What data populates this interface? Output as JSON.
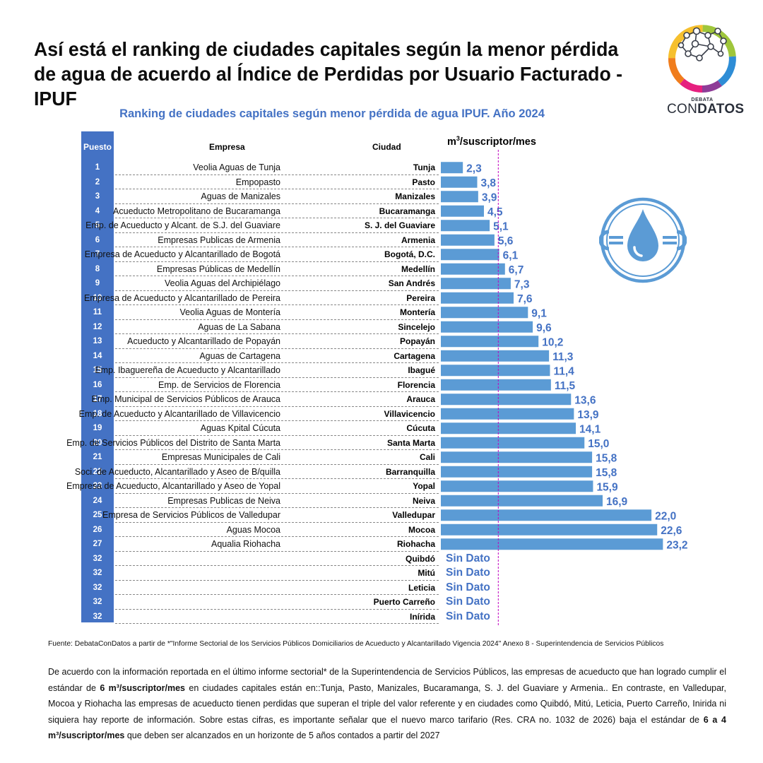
{
  "title": "Así está el ranking de ciudades capitales según la menor pérdida de agua de acuerdo al Índice de Perdidas por Usuario Facturado - IPUF",
  "logo": {
    "top": "DEBATA",
    "bottom_light": "CON",
    "bottom_bold": "DATOS"
  },
  "chart_data": {
    "type": "bar",
    "orientation": "horizontal",
    "title": "Ranking de ciudades capitales según menor pérdida de agua IPUF. Año 2024",
    "unit_label": "m³/suscriptor/mes",
    "columns": {
      "puesto": "Puesto",
      "empresa": "Empresa",
      "ciudad": "Ciudad"
    },
    "xlim": [
      0,
      24
    ],
    "reference_line": 6,
    "bar_color": "#5B9BD5",
    "label_color": "#4472C4",
    "rows": [
      {
        "puesto": "1",
        "empresa": "Veolia Aguas de Tunja",
        "ciudad": "Tunja",
        "value": 2.3,
        "label": "2,3"
      },
      {
        "puesto": "2",
        "empresa": "Empopasto",
        "ciudad": "Pasto",
        "value": 3.8,
        "label": "3,8"
      },
      {
        "puesto": "3",
        "empresa": "Aguas de Manizales",
        "ciudad": "Manizales",
        "value": 3.9,
        "label": "3,9"
      },
      {
        "puesto": "4",
        "empresa": "Acueducto Metropolitano de Bucaramanga",
        "ciudad": "Bucaramanga",
        "value": 4.5,
        "label": "4,5"
      },
      {
        "puesto": "5",
        "empresa": "Emp. de Acueducto y Alcant. de S.J. del Guaviare",
        "ciudad": "S. J. del Guaviare",
        "value": 5.1,
        "label": "5,1"
      },
      {
        "puesto": "6",
        "empresa": "Empresas Publicas de Armenia",
        "ciudad": "Armenia",
        "value": 5.6,
        "label": "5,6"
      },
      {
        "puesto": "7",
        "empresa": "Empresa de Acueducto y Alcantarillado de Bogotá",
        "ciudad": "Bogotá, D.C.",
        "value": 6.1,
        "label": "6,1"
      },
      {
        "puesto": "8",
        "empresa": "Empresas Públicas de Medellín",
        "ciudad": "Medellín",
        "value": 6.7,
        "label": "6,7"
      },
      {
        "puesto": "9",
        "empresa": "Veolia Aguas del Archipiélago",
        "ciudad": "San Andrés",
        "value": 7.3,
        "label": "7,3"
      },
      {
        "puesto": "10",
        "empresa": "Empresa de Acueducto y Alcantarillado de Pereira",
        "ciudad": "Pereira",
        "value": 7.6,
        "label": "7,6"
      },
      {
        "puesto": "11",
        "empresa": "Veolia Aguas de Montería",
        "ciudad": "Montería",
        "value": 9.1,
        "label": "9,1"
      },
      {
        "puesto": "12",
        "empresa": "Aguas de La Sabana",
        "ciudad": "Sincelejo",
        "value": 9.6,
        "label": "9,6"
      },
      {
        "puesto": "13",
        "empresa": "Acueducto y Alcantarillado de Popayán",
        "ciudad": "Popayán",
        "value": 10.2,
        "label": "10,2"
      },
      {
        "puesto": "14",
        "empresa": "Aguas de Cartagena",
        "ciudad": "Cartagena",
        "value": 11.3,
        "label": "11,3"
      },
      {
        "puesto": "15",
        "empresa": "Emp. Ibaguereña de Acueducto y Alcantarillado",
        "ciudad": "Ibagué",
        "value": 11.4,
        "label": "11,4"
      },
      {
        "puesto": "16",
        "empresa": "Emp. de Servicios de Florencia",
        "ciudad": "Florencia",
        "value": 11.5,
        "label": "11,5"
      },
      {
        "puesto": "17",
        "empresa": "Emp. Municipal de Servicios Públicos de Arauca",
        "ciudad": "Arauca",
        "value": 13.6,
        "label": "13,6"
      },
      {
        "puesto": "18",
        "empresa": "Emp. de Acueducto y Alcantarillado de Villavicencio",
        "ciudad": "Villavicencio",
        "value": 13.9,
        "label": "13,9"
      },
      {
        "puesto": "19",
        "empresa": "Aguas Kpital Cúcuta",
        "ciudad": "Cúcuta",
        "value": 14.1,
        "label": "14,1"
      },
      {
        "puesto": "20",
        "empresa": "Emp. de Servicios Públicos del Distrito de Santa Marta",
        "ciudad": "Santa Marta",
        "value": 15.0,
        "label": "15,0"
      },
      {
        "puesto": "21",
        "empresa": "Empresas Municipales de Cali",
        "ciudad": "Cali",
        "value": 15.8,
        "label": "15,8"
      },
      {
        "puesto": "22",
        "empresa": "Soci. de Acueducto, Alcantarillado y Aseo de B/quilla",
        "ciudad": "Barranquilla",
        "value": 15.8,
        "label": "15,8"
      },
      {
        "puesto": "23",
        "empresa": "Empresa de Acueducto, Alcantarillado y Aseo de Yopal",
        "ciudad": "Yopal",
        "value": 15.9,
        "label": "15,9"
      },
      {
        "puesto": "24",
        "empresa": "Empresas Publicas de Neiva",
        "ciudad": "Neiva",
        "value": 16.9,
        "label": "16,9"
      },
      {
        "puesto": "25",
        "empresa": "Empresa de Servicios Públicos de Valledupar",
        "ciudad": "Valledupar",
        "value": 22.0,
        "label": "22,0"
      },
      {
        "puesto": "26",
        "empresa": "Aguas Mocoa",
        "ciudad": "Mocoa",
        "value": 22.6,
        "label": "22,6"
      },
      {
        "puesto": "27",
        "empresa": "Aqualia Riohacha",
        "ciudad": "Riohacha",
        "value": 23.2,
        "label": "23,2"
      },
      {
        "puesto": "32",
        "empresa": "",
        "ciudad": "Quibdó",
        "value": null,
        "label": "Sin Dato"
      },
      {
        "puesto": "32",
        "empresa": "",
        "ciudad": "Mitú",
        "value": null,
        "label": "Sin Dato"
      },
      {
        "puesto": "32",
        "empresa": "",
        "ciudad": "Leticia",
        "value": null,
        "label": "Sin Dato"
      },
      {
        "puesto": "32",
        "empresa": "",
        "ciudad": "Puerto Carreño",
        "value": null,
        "label": "Sin Dato"
      },
      {
        "puesto": "32",
        "empresa": "",
        "ciudad": "Inírida",
        "value": null,
        "label": "Sin Dato"
      }
    ]
  },
  "source": "Fuente:  DebataConDatos  a partir de *\"Informe Sectorial de los Servicios Públicos Domiciliarios de Acueducto y Alcantarillado  Vigencia 2024\"  Anexo 8 - Superintendencia  de Servicios Públicos",
  "body": {
    "p1": "De acuerdo con la información reportada en el último informe sectorial* de la Superintendencia de Servicios Públicos, las empresas de acueducto que han logrado cumplir el estándar de ",
    "b1": "6 m³/suscriptor/mes",
    "p2": " en ciudades capitales están en::Tunja, Pasto, Manizales, Bucaramanga, S. J. del Guaviare y Armenia.. En contraste, en Valledupar, Mocoa y Riohacha las empresas de acueducto tienen perdidas que superan el triple del valor referente y en ciudades como Quibdó, Mitú, Leticia, Puerto Carreño, Inirida ni siquiera hay reporte de información. Sobre estas cifras, es importante señalar que el nuevo marco tarifario (Res. CRA no. 1032 de 2026) baja el estándar de ",
    "b2": "6 a 4 m³/suscriptor/mes",
    "p3": " que deben ser alcanzados en un horizonte de 5 años contados a partir del 2027"
  },
  "icons": {
    "logo": "network-logo-icon",
    "water": "water-drop-wrench-icon"
  }
}
